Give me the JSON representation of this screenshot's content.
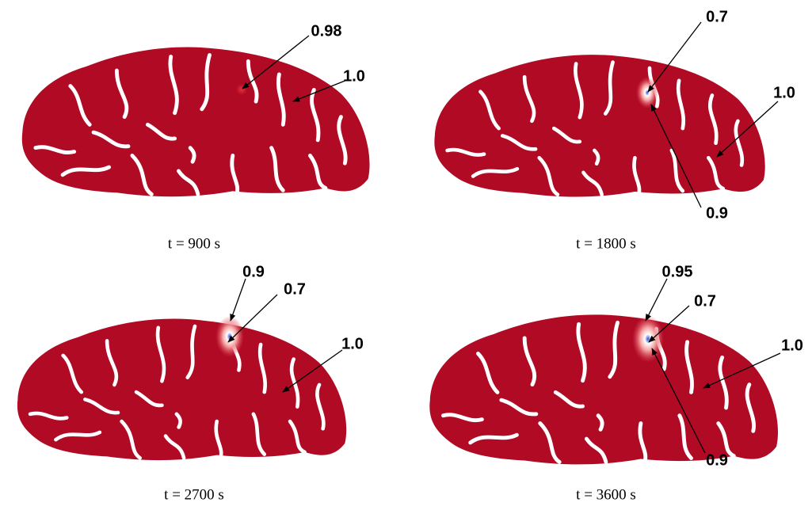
{
  "panels": [
    {
      "caption": "t = 900 s",
      "labels": [
        "0.98",
        "1.0"
      ]
    },
    {
      "caption": "t = 1800 s",
      "labels": [
        "0.7",
        "1.0",
        "0.9"
      ]
    },
    {
      "caption": "t = 2700 s",
      "labels": [
        "0.9",
        "0.7",
        "1.0"
      ]
    },
    {
      "caption": "t = 3600 s",
      "labels": [
        "0.95",
        "0.7",
        "1.0",
        "0.9"
      ]
    }
  ]
}
